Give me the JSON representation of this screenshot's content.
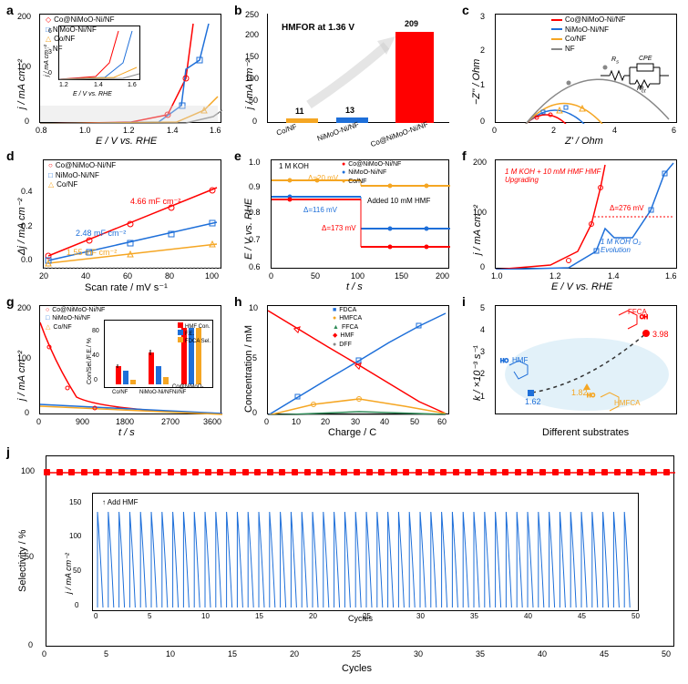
{
  "panels": {
    "a": {
      "label": "a",
      "xlabel": "E / V vs. RHE",
      "ylabel": "j / mA cm⁻²",
      "xlim": [
        0.8,
        1.6
      ],
      "ylim": [
        0,
        200
      ],
      "xticks": [
        0.8,
        1.0,
        1.2,
        1.4,
        1.6
      ],
      "yticks": [
        0,
        100,
        200
      ],
      "series": [
        {
          "name": "Co@NiMoO-Ni/NF",
          "color": "#ff0000",
          "marker": "diamond"
        },
        {
          "name": "NiMoO-Ni/NF",
          "color": "#1e6fd9",
          "marker": "square"
        },
        {
          "name": "Co/NF",
          "color": "#f5a623",
          "marker": "triangle"
        },
        {
          "name": "NF",
          "color": "#888888",
          "marker": "circle"
        }
      ],
      "inset": {
        "xlabel": "E / V vs. RHE",
        "ylabel": "j / mA cm⁻²",
        "xlim": [
          1.2,
          1.6
        ],
        "xticks": [
          1.2,
          1.3,
          1.4,
          1.5,
          1.6
        ],
        "yticks": [
          0,
          3,
          6
        ]
      }
    },
    "b": {
      "label": "b",
      "xlabel": "",
      "ylabel": "j / mA cm⁻²",
      "ylim": [
        0,
        250
      ],
      "yticks": [
        0,
        50,
        100,
        150,
        200,
        250
      ],
      "title": "HMFOR at 1.36 V",
      "bars": [
        {
          "cat": "Co/NF",
          "val": 11,
          "color": "#f5a623"
        },
        {
          "cat": "NiMoO-Ni/NF",
          "val": 13,
          "color": "#1e6fd9"
        },
        {
          "cat": "Co@NiMoO-Ni/NF",
          "val": 209,
          "color": "#ff0000"
        }
      ]
    },
    "c": {
      "label": "c",
      "xlabel": "Z' / Ohm",
      "ylabel": "−Z'' / Ohm",
      "xlim": [
        0,
        6
      ],
      "ylim": [
        0,
        3
      ],
      "xticks": [
        0,
        2,
        4,
        6
      ],
      "yticks": [
        0,
        1,
        2,
        3
      ],
      "series": [
        {
          "name": "Co@NiMoO-Ni/NF",
          "color": "#ff0000"
        },
        {
          "name": "NiMoO-Ni/NF",
          "color": "#1e6fd9"
        },
        {
          "name": "Co/NF",
          "color": "#f5a623"
        },
        {
          "name": "NF",
          "color": "#888888"
        }
      ],
      "circuit": [
        "Rs",
        "CPE",
        "Rct"
      ]
    },
    "d": {
      "label": "d",
      "xlabel": "Scan rate / mV s⁻¹",
      "ylabel": "Δj / mA cm⁻²",
      "xlim": [
        20,
        100
      ],
      "ylim": [
        0,
        0.6
      ],
      "xticks": [
        20,
        40,
        60,
        80,
        100
      ],
      "yticks": [
        0.0,
        0.2,
        0.4
      ],
      "series": [
        {
          "name": "Co@NiMoO-Ni/NF",
          "color": "#ff0000",
          "slope": "4.66 mF cm⁻²"
        },
        {
          "name": "NiMoO-Ni/NF",
          "color": "#1e6fd9",
          "slope": "2.48 mF cm⁻²"
        },
        {
          "name": "Co/NF",
          "color": "#f5a623",
          "slope": "1.55 mF cm⁻²"
        }
      ]
    },
    "e": {
      "label": "e",
      "xlabel": "t / s",
      "ylabel": "E / V vs. RHE",
      "xlim": [
        0,
        200
      ],
      "ylim": [
        0.6,
        1.0
      ],
      "xticks": [
        0,
        50,
        100,
        150,
        200
      ],
      "yticks": [
        0.6,
        0.7,
        0.8,
        0.9,
        1.0
      ],
      "anno": [
        "1 M KOH",
        "Added 10 mM HMF",
        "Δ=20 mV",
        "Δ=116 mV",
        "Δ=173 mV"
      ],
      "series": [
        {
          "name": "Co@NiMoO-Ni/NF",
          "color": "#ff0000"
        },
        {
          "name": "NiMoO-Ni/NF",
          "color": "#1e6fd9"
        },
        {
          "name": "Co/NF",
          "color": "#f5a623"
        }
      ]
    },
    "f": {
      "label": "f",
      "xlabel": "E / V vs. RHE",
      "ylabel": "j / mA cm⁻²",
      "xlim": [
        1.0,
        1.6
      ],
      "ylim": [
        0,
        200
      ],
      "xticks": [
        1.0,
        1.2,
        1.4,
        1.6
      ],
      "yticks": [
        0,
        100,
        200
      ],
      "anno": [
        "1 M KOH + 10 mM HMF HMF Upgrading",
        "1 M KOH O₂ Evolution",
        "Δ=276 mV"
      ],
      "series": [
        {
          "name": "HMF",
          "color": "#ff0000"
        },
        {
          "name": "OER",
          "color": "#1e6fd9"
        }
      ]
    },
    "g": {
      "label": "g",
      "xlabel": "t / s",
      "ylabel": "j / mA cm⁻²",
      "xlim": [
        0,
        3600
      ],
      "ylim": [
        0,
        200
      ],
      "xticks": [
        0,
        900,
        1800,
        2700,
        3600
      ],
      "yticks": [
        0,
        100,
        200
      ],
      "series": [
        {
          "name": "Co@NiMoO-Ni/NF",
          "color": "#ff0000"
        },
        {
          "name": "NiMoO-Ni/NF",
          "color": "#1e6fd9"
        },
        {
          "name": "Co/NF",
          "color": "#f5a623"
        }
      ],
      "inset": {
        "ylabel": "Con/Sel./F.E./ %",
        "yticks": [
          0,
          40,
          80
        ],
        "cats": [
          "Co/NF",
          "NiMoO-Ni/NF",
          "Co@NiMoO-Ni/NF"
        ],
        "groups": [
          {
            "name": "HMF Con.",
            "color": "#ff0000"
          },
          {
            "name": "F.E.",
            "color": "#1e6fd9"
          },
          {
            "name": "FDCA Sel.",
            "color": "#f5a623"
          }
        ]
      }
    },
    "h": {
      "label": "h",
      "xlabel": "Charge / C",
      "ylabel": "Concentration / mM",
      "xlim": [
        0,
        60
      ],
      "ylim": [
        0,
        10
      ],
      "xticks": [
        0,
        10,
        20,
        30,
        40,
        50,
        60
      ],
      "yticks": [
        0,
        5,
        10
      ],
      "series": [
        {
          "name": "FDCA",
          "color": "#1e6fd9",
          "marker": "square"
        },
        {
          "name": "HMFCA",
          "color": "#f5a623",
          "marker": "circle"
        },
        {
          "name": "FFCA",
          "color": "#2e8b57",
          "marker": "triangle"
        },
        {
          "name": "HMF",
          "color": "#ff0000",
          "marker": "diamond"
        },
        {
          "name": "DFF",
          "color": "#888888",
          "marker": "circle"
        }
      ]
    },
    "i": {
      "label": "i",
      "xlabel": "Different substrates",
      "ylabel": "k / ×10⁻³ s⁻¹",
      "ylim": [
        0,
        5
      ],
      "yticks": [
        1,
        2,
        3,
        4,
        5
      ],
      "points": [
        {
          "name": "HMF",
          "val": 1.62,
          "color": "#1e6fd9"
        },
        {
          "name": "HMFCA",
          "val": 1.82,
          "color": "#f5a623"
        },
        {
          "name": "FFCA",
          "val": 3.98,
          "color": "#ff0000"
        }
      ]
    },
    "j": {
      "label": "j",
      "xlabel": "Cycles",
      "ylabel": "Selectivity / %",
      "xlim": [
        0,
        50
      ],
      "ylim": [
        0,
        110
      ],
      "xticks": [
        0,
        5,
        10,
        15,
        20,
        25,
        30,
        35,
        40,
        45,
        50
      ],
      "yticks": [
        0,
        50,
        100
      ],
      "selectivity": 98,
      "inset": {
        "xlabel": "Cycles",
        "ylabel": "j / mA cm⁻²",
        "xticks": [
          0,
          5,
          10,
          15,
          20,
          25,
          30,
          35,
          40,
          45,
          50
        ],
        "yticks": [
          0,
          50,
          100,
          150
        ],
        "anno": "Add HMF"
      }
    }
  },
  "colors": {
    "red": "#ff0000",
    "blue": "#1e6fd9",
    "orange": "#f5a623",
    "gray": "#888888",
    "green": "#2e8b57"
  }
}
